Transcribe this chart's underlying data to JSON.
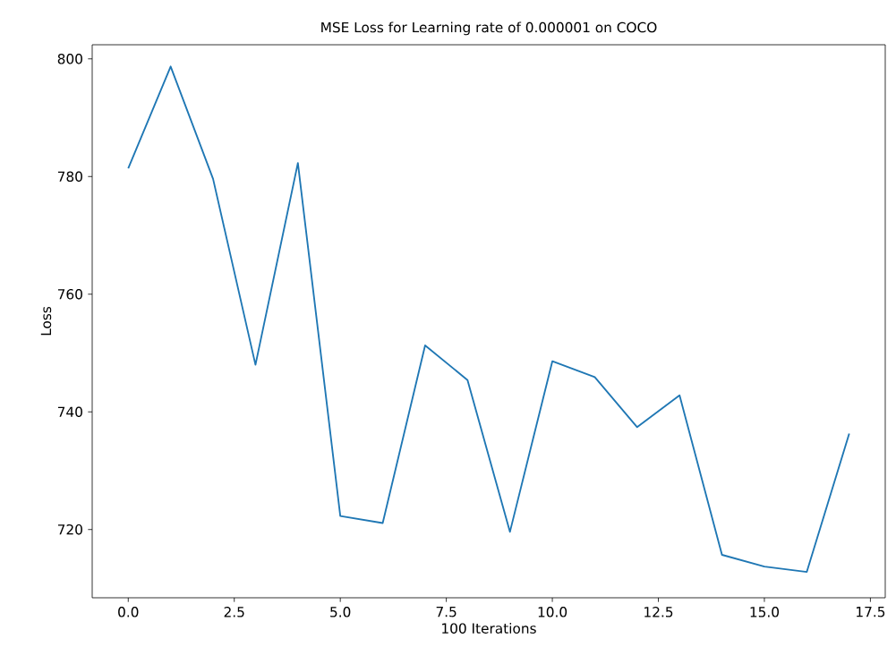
{
  "chart_data": {
    "type": "line",
    "title": "MSE Loss for Learning rate of 0.000001 on COCO",
    "xlabel": "100 Iterations",
    "ylabel": "Loss",
    "x": [
      0,
      1,
      2,
      3,
      4,
      5,
      6,
      7,
      8,
      9,
      10,
      11,
      12,
      13,
      14,
      15,
      16,
      17
    ],
    "series": [
      {
        "color": "#1f77b4",
        "values": [
          781.4,
          798.7,
          779.6,
          748.0,
          782.3,
          722.3,
          721.1,
          751.3,
          745.4,
          719.6,
          748.6,
          745.9,
          737.4,
          742.8,
          715.7,
          713.7,
          712.8,
          736.3
        ]
      }
    ],
    "xlim": [
      -0.85,
      17.85
    ],
    "ylim": [
      708.4,
      802.4
    ],
    "xticks": [
      {
        "value": 0,
        "label": "0.0"
      },
      {
        "value": 2.5,
        "label": "2.5"
      },
      {
        "value": 5,
        "label": "5.0"
      },
      {
        "value": 7.5,
        "label": "7.5"
      },
      {
        "value": 10,
        "label": "10.0"
      },
      {
        "value": 12.5,
        "label": "12.5"
      },
      {
        "value": 15,
        "label": "15.0"
      },
      {
        "value": 17.5,
        "label": "17.5"
      }
    ],
    "yticks": [
      720,
      740,
      760,
      780,
      800
    ],
    "marker": "none",
    "line_style": "solid"
  }
}
